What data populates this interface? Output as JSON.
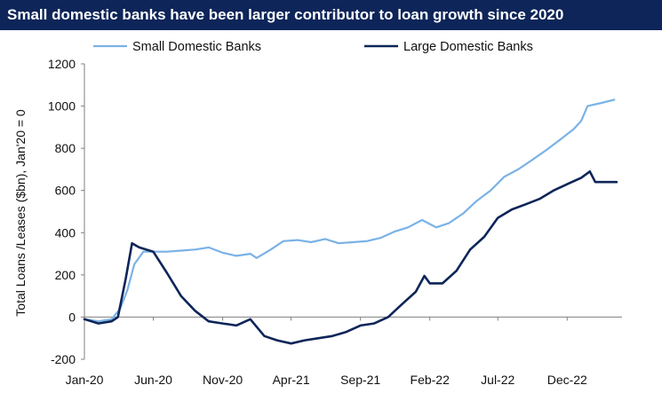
{
  "chart_data": {
    "type": "line",
    "title": "Small domestic banks have been larger contributor to loan growth since 2020",
    "ylabel": "Total Loans /Leases ($bn), Jan'20 = 0",
    "xlabel": "",
    "ylim": [
      -200,
      1200
    ],
    "yticks": [
      -200,
      0,
      200,
      400,
      600,
      800,
      1000,
      1200
    ],
    "xlim": [
      "2020-01",
      "2023-04"
    ],
    "xtick_labels": [
      "Jan-20",
      "Jun-20",
      "Nov-20",
      "Apr-21",
      "Sep-21",
      "Feb-22",
      "Jul-22",
      "Dec-22"
    ],
    "xtick_dates": [
      "2020-01",
      "2020-06",
      "2020-11",
      "2021-04",
      "2021-09",
      "2022-02",
      "2022-07",
      "2022-12"
    ],
    "legend_position": "top",
    "grid": false,
    "series": [
      {
        "name": "Small Domestic Banks",
        "color": "#7ab2e6",
        "x": [
          "2020-01-01",
          "2020-02-01",
          "2020-03-01",
          "2020-03-20",
          "2020-04-05",
          "2020-04-20",
          "2020-05-10",
          "2020-06-01",
          "2020-07-01",
          "2020-08-01",
          "2020-09-01",
          "2020-10-01",
          "2020-11-01",
          "2020-12-01",
          "2021-01-01",
          "2021-01-15",
          "2021-02-15",
          "2021-03-15",
          "2021-04-15",
          "2021-05-15",
          "2021-06-15",
          "2021-07-15",
          "2021-08-15",
          "2021-09-15",
          "2021-10-15",
          "2021-11-15",
          "2021-12-15",
          "2022-01-15",
          "2022-02-15",
          "2022-03-15",
          "2022-04-15",
          "2022-05-15",
          "2022-06-15",
          "2022-07-15",
          "2022-08-15",
          "2022-09-15",
          "2022-10-15",
          "2022-11-15",
          "2022-12-15",
          "2023-01-01",
          "2023-01-15",
          "2023-02-15",
          "2023-03-15"
        ],
        "values": [
          -10,
          -20,
          -10,
          40,
          130,
          250,
          310,
          310,
          310,
          315,
          320,
          330,
          305,
          290,
          300,
          280,
          320,
          360,
          365,
          355,
          370,
          350,
          355,
          360,
          375,
          405,
          425,
          460,
          425,
          445,
          490,
          550,
          600,
          665,
          700,
          745,
          790,
          840,
          890,
          930,
          1000,
          1015,
          1030
        ]
      },
      {
        "name": "Large Domestic Banks",
        "color": "#0d2559",
        "x": [
          "2020-01-01",
          "2020-02-01",
          "2020-03-01",
          "2020-03-15",
          "2020-04-01",
          "2020-04-15",
          "2020-05-01",
          "2020-06-01",
          "2020-07-01",
          "2020-08-01",
          "2020-09-01",
          "2020-10-01",
          "2020-11-01",
          "2020-12-01",
          "2021-01-01",
          "2021-02-01",
          "2021-03-01",
          "2021-04-01",
          "2021-05-01",
          "2021-06-01",
          "2021-07-01",
          "2021-08-01",
          "2021-09-01",
          "2021-10-01",
          "2021-11-01",
          "2021-12-01",
          "2022-01-01",
          "2022-01-20",
          "2022-02-01",
          "2022-03-01",
          "2022-04-01",
          "2022-05-01",
          "2022-06-01",
          "2022-07-01",
          "2022-08-01",
          "2022-09-01",
          "2022-10-01",
          "2022-11-01",
          "2022-12-01",
          "2023-01-01",
          "2023-01-20",
          "2023-02-01",
          "2023-03-01",
          "2023-03-20"
        ],
        "values": [
          -10,
          -30,
          -20,
          0,
          180,
          350,
          330,
          310,
          210,
          100,
          30,
          -20,
          -30,
          -40,
          -10,
          -90,
          -110,
          -125,
          -110,
          -100,
          -90,
          -70,
          -40,
          -30,
          0,
          60,
          120,
          195,
          160,
          160,
          220,
          320,
          380,
          470,
          510,
          535,
          560,
          600,
          630,
          660,
          690,
          640,
          640,
          640
        ]
      }
    ]
  }
}
